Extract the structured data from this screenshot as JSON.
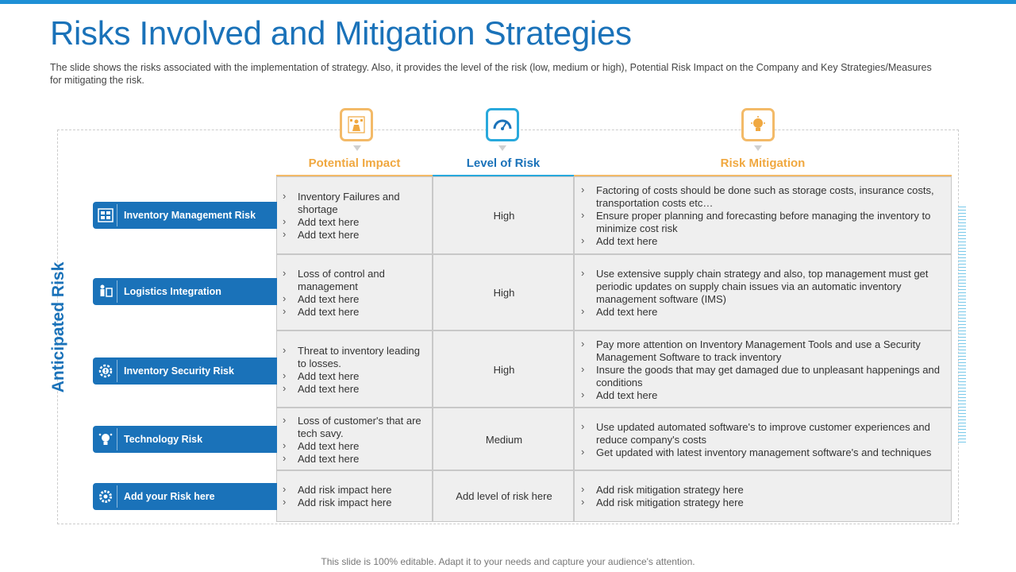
{
  "slide": {
    "title": "Risks Involved and Mitigation Strategies",
    "subtitle": "The slide shows the risks associated with the implementation of strategy. Also, it provides the level of the risk (low, medium or high), Potential Risk Impact on the Company and Key Strategies/Measures for mitigating the risk.",
    "side_label": "Anticipated Risk",
    "footer": "This slide is 100% editable. Adapt it to your needs and capture your audience's attention."
  },
  "columns": [
    {
      "label": "Potential Impact",
      "icon": "impact-icon",
      "accent": "#f0a840"
    },
    {
      "label": "Level of Risk",
      "icon": "gauge-icon",
      "accent": "#29a9dc"
    },
    {
      "label": "Risk Mitigation",
      "icon": "lightbulb-icon",
      "accent": "#f0a840"
    }
  ],
  "rows": [
    {
      "risk": "Inventory Management Risk",
      "icon": "inventory-board-icon",
      "impact": [
        "Inventory  Failures and shortage",
        "Add text here",
        "Add text here"
      ],
      "level": "High",
      "mitigation": [
        "Factoring of costs should be done such as storage costs, insurance costs, transportation costs etc…",
        "Ensure proper planning and forecasting before  managing the inventory to minimize cost risk",
        "Add text here"
      ]
    },
    {
      "risk": "Logistics Integration",
      "icon": "logistics-icon",
      "impact": [
        "Loss of control and management",
        "Add text here",
        "Add text here"
      ],
      "level": "High",
      "mitigation": [
        "Use extensive supply chain strategy and also, top management must get periodic updates on supply chain issues via an automatic inventory management software (IMS)",
        "Add text here"
      ]
    },
    {
      "risk": "Inventory Security Risk",
      "icon": "security-gear-icon",
      "impact": [
        "Threat to inventory leading to losses.",
        "Add text here",
        "Add text here"
      ],
      "level": "High",
      "mitigation": [
        "Pay more attention on Inventory  Management Tools and use a Security Management  Software to track inventory",
        "Insure the goods that may get damaged due to unpleasant happenings and conditions",
        "Add text here"
      ]
    },
    {
      "risk": "Technology  Risk",
      "icon": "technology-icon",
      "impact": [
        "Loss of customer's that are tech savy.",
        "Add text here",
        "Add text here"
      ],
      "level": "Medium",
      "mitigation": [
        "Use updated automated software's to improve  customer experiences and reduce company's costs",
        "Get updated with latest inventory management software's and techniques"
      ]
    },
    {
      "risk": "Add your Risk here",
      "icon": "settings-icon",
      "impact": [
        "Add risk impact here",
        "Add risk impact here"
      ],
      "level": "Add level  of risk here",
      "mitigation": [
        "Add risk mitigation strategy here",
        "Add risk mitigation strategy here"
      ]
    }
  ],
  "colors": {
    "primary_blue": "#1a72b9",
    "accent_orange": "#f0a840",
    "accent_cyan": "#29a9dc",
    "cell_bg": "#efefef",
    "top_bar": "#1e90d6"
  }
}
